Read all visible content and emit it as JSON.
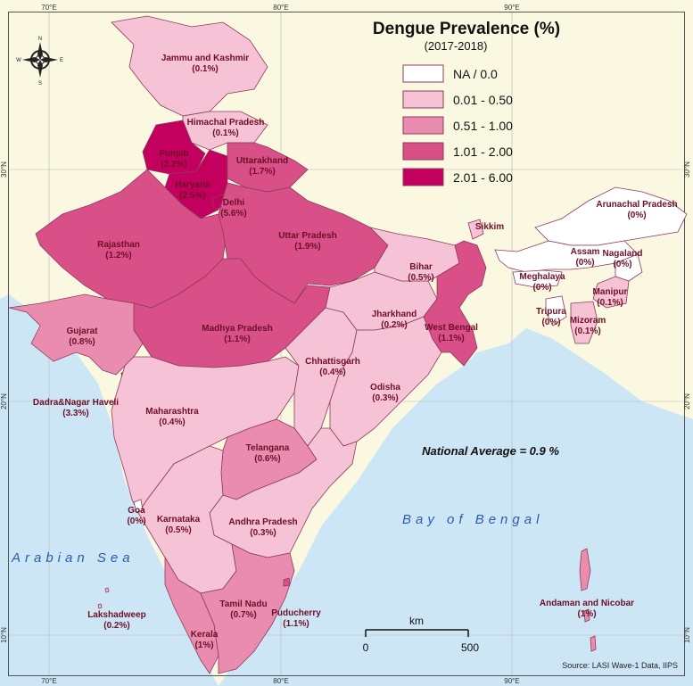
{
  "legend": {
    "title": "Dengue Prevalence (%)",
    "subtitle": "(2017-2018)",
    "classes": [
      {
        "label": "NA / 0.0",
        "color": "#ffffff"
      },
      {
        "label": "0.01 - 0.50",
        "color": "#f6c2d5"
      },
      {
        "label": "0.51 - 1.00",
        "color": "#ea8cb0"
      },
      {
        "label": "1.01 - 2.00",
        "color": "#d94f87"
      },
      {
        "label": "2.01 - 6.00",
        "color": "#c4005f"
      }
    ]
  },
  "grid": {
    "longitudes": [
      "70°E",
      "80°E",
      "90°E"
    ],
    "latitudes": [
      "30°N",
      "20°N",
      "10°N"
    ]
  },
  "compass": {
    "n": "N",
    "s": "S",
    "e": "E",
    "w": "W"
  },
  "states": [
    {
      "name": "Jammu and Kashmir",
      "value": "(0.1%)"
    },
    {
      "name": "Himachal Pradesh",
      "value": "(0.1%)"
    },
    {
      "name": "Punjab",
      "value": "(2.2%)"
    },
    {
      "name": "Haryana",
      "value": "(2.5%)"
    },
    {
      "name": "Uttarakhand",
      "value": "(1.7%)"
    },
    {
      "name": "Delhi",
      "value": "(5.6%)"
    },
    {
      "name": "Rajasthan",
      "value": "(1.2%)"
    },
    {
      "name": "Uttar Pradesh",
      "value": "(1.9%)"
    },
    {
      "name": "Bihar",
      "value": "(0.5%)"
    },
    {
      "name": "Sikkim",
      "value": ""
    },
    {
      "name": "Arunachal Pradesh",
      "value": "(0%)"
    },
    {
      "name": "Assam",
      "value": "(0%)"
    },
    {
      "name": "Nagaland",
      "value": "(0%)"
    },
    {
      "name": "Meghalaya",
      "value": "(0%)"
    },
    {
      "name": "Manipur",
      "value": "(0.1%)"
    },
    {
      "name": "Tripura",
      "value": "(0%)"
    },
    {
      "name": "Mizoram",
      "value": "(0.1%)"
    },
    {
      "name": "Gujarat",
      "value": "(0.8%)"
    },
    {
      "name": "Madhya Pradesh",
      "value": "(1.1%)"
    },
    {
      "name": "Jharkhand",
      "value": "(0.2%)"
    },
    {
      "name": "West Bengal",
      "value": "(1.1%)"
    },
    {
      "name": "Chhattisgarh",
      "value": "(0.4%)"
    },
    {
      "name": "Odisha",
      "value": "(0.3%)"
    },
    {
      "name": "Dadra&Nagar Haveli",
      "value": "(3.3%)"
    },
    {
      "name": "Maharashtra",
      "value": "(0.4%)"
    },
    {
      "name": "Telangana",
      "value": "(0.6%)"
    },
    {
      "name": "Goa",
      "value": "(0%)"
    },
    {
      "name": "Karnataka",
      "value": "(0.5%)"
    },
    {
      "name": "Andhra Pradesh",
      "value": "(0.3%)"
    },
    {
      "name": "Tamil Nadu",
      "value": "(0.7%)"
    },
    {
      "name": "Puducherry",
      "value": "(1.1%)"
    },
    {
      "name": "Kerala",
      "value": "(1%)"
    },
    {
      "name": "Lakshadweep",
      "value": "(0.2%)"
    },
    {
      "name": "Andaman and Nicobar",
      "value": "(1%)"
    }
  ],
  "seas": {
    "arabian": "Arabian Sea",
    "bengal": "Bay of Bengal"
  },
  "national_average": "National Average = 0.9 %",
  "scalebar": {
    "unit": "km",
    "start": "0",
    "end": "500"
  },
  "source": "Source: LASI Wave-1 Data, IIPS",
  "colors": {
    "sea": "#cde6f5",
    "land_neighbor": "#fbf8e2",
    "border": "#9a4a6a"
  }
}
